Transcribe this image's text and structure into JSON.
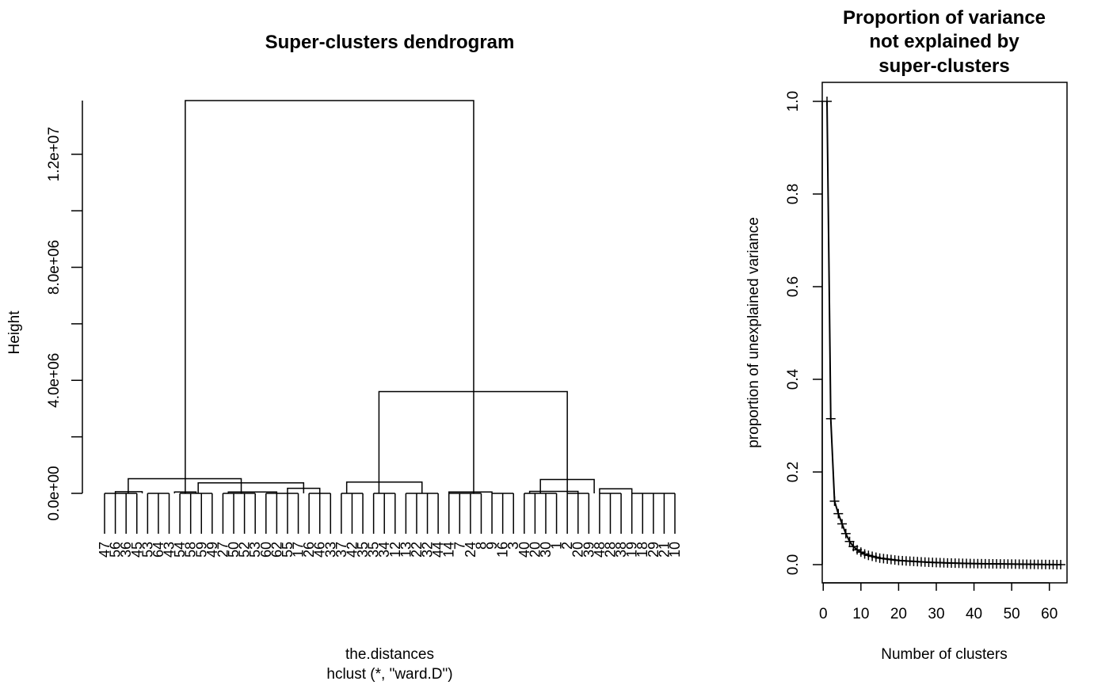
{
  "chart_data": [
    {
      "type": "dendrogram",
      "title": "Super-clusters dendrogram",
      "xlabel": "the.distances",
      "sub": "hclust (*, \"ward.D\")",
      "ylabel": "Height",
      "ylim": [
        0,
        13900000
      ],
      "yticks": [
        0,
        2000000,
        4000000,
        6000000,
        8000000,
        10000000,
        12000000
      ],
      "ytick_labels": [
        "0.0e+00",
        "",
        "4.0e+06",
        "",
        "8.0e+06",
        "",
        "1.2e+07"
      ],
      "leaves": [
        "47",
        "56",
        "36",
        "45",
        "53",
        "64",
        "43",
        "54",
        "58",
        "59",
        "49",
        "27",
        "50",
        "52",
        "53",
        "60",
        "62",
        "55",
        "17",
        "26",
        "46",
        "33",
        "37",
        "42",
        "35",
        "35",
        "34",
        "12",
        "13",
        "22",
        "32",
        "44",
        "14",
        "7",
        "24",
        "8",
        "9",
        "16",
        "3",
        "40",
        "20",
        "30",
        "1",
        "2",
        "20",
        "39",
        "48",
        "28",
        "38",
        "19",
        "18",
        "29",
        "21",
        "10"
      ],
      "merges": [
        {
          "x": [
            0.95,
            0.95
          ],
          "height": 0
        },
        {
          "x": [
            1.0,
            3.5
          ],
          "height": 60000
        },
        {
          "x": [
            6.5,
            8.5
          ],
          "height": 50000
        },
        {
          "x": [
            11.5,
            16.0
          ],
          "height": 50000
        },
        {
          "x": [
            17.0,
            20.0
          ],
          "height": 180000
        },
        {
          "x": [
            2.2,
            12.7
          ],
          "height": 520000
        },
        {
          "x": [
            8.7,
            18.5
          ],
          "height": 370000
        },
        {
          "x": [
            22.5,
            29.5
          ],
          "height": 400000
        },
        {
          "x": [
            32.0,
            36.0
          ],
          "height": 50000
        },
        {
          "x": [
            39.5,
            44.0
          ],
          "height": 70000
        },
        {
          "x": [
            46.0,
            49.0
          ],
          "height": 160000
        },
        {
          "x": [
            40.5,
            45.5
          ],
          "height": 490000
        },
        {
          "x": [
            25.5,
            43.0
          ],
          "height": 3600000
        },
        {
          "x": [
            7.5,
            34.3
          ],
          "height": 13900000
        }
      ]
    },
    {
      "type": "scatter",
      "title": "Proportion of variance\nnot explained by\nsuper-clusters",
      "title_lines": [
        "Proportion of variance",
        "not explained by",
        "super-clusters"
      ],
      "xlabel": "Number of clusters",
      "ylabel": "proportion of unexplained variance",
      "xlim": [
        0,
        64
      ],
      "ylim": [
        -0.05,
        1.05
      ],
      "xticks": [
        0,
        10,
        20,
        30,
        40,
        50,
        60
      ],
      "yticks": [
        0.0,
        0.2,
        0.4,
        0.6,
        0.8,
        1.0
      ],
      "xtick_labels": [
        "0",
        "10",
        "20",
        "30",
        "40",
        "50",
        "60"
      ],
      "ytick_labels": [
        "0.0",
        "0.2",
        "0.4",
        "0.6",
        "0.8",
        "1.0"
      ],
      "x": [
        1,
        2,
        3,
        4,
        5,
        6,
        7,
        8,
        9,
        10,
        11,
        12,
        13,
        14,
        15,
        16,
        17,
        18,
        19,
        20,
        21,
        22,
        23,
        24,
        25,
        26,
        27,
        28,
        29,
        30,
        31,
        32,
        33,
        34,
        35,
        36,
        37,
        38,
        39,
        40,
        41,
        42,
        43,
        44,
        45,
        46,
        47,
        48,
        49,
        50,
        51,
        52,
        53,
        54,
        55,
        56,
        57,
        58,
        59,
        60,
        61,
        62,
        63
      ],
      "values": [
        1.0,
        0.315,
        0.137,
        0.11,
        0.088,
        0.067,
        0.05,
        0.039,
        0.032,
        0.027,
        0.023,
        0.02,
        0.018,
        0.016,
        0.014,
        0.013,
        0.012,
        0.011,
        0.01,
        0.009,
        0.0085,
        0.008,
        0.0075,
        0.007,
        0.0065,
        0.006,
        0.0056,
        0.0052,
        0.0048,
        0.0045,
        0.0042,
        0.0039,
        0.0036,
        0.0034,
        0.0032,
        0.003,
        0.0028,
        0.0026,
        0.0024,
        0.0022,
        0.0021,
        0.002,
        0.0019,
        0.0018,
        0.0017,
        0.0016,
        0.0015,
        0.0014,
        0.0013,
        0.0012,
        0.0011,
        0.001,
        0.0009,
        0.0008,
        0.0007,
        0.0006,
        0.0005,
        0.0004,
        0.0003,
        0.0002,
        0.00015,
        0.0001,
        0.0
      ]
    }
  ]
}
